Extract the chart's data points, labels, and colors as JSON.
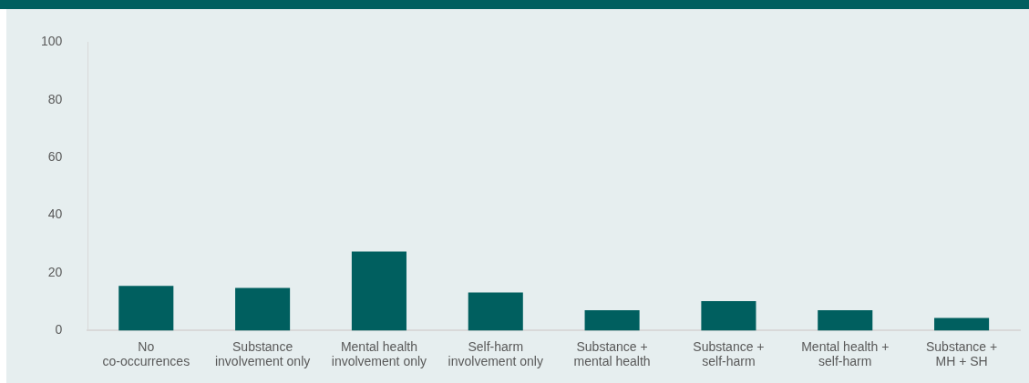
{
  "chart_data": {
    "type": "bar",
    "categories": [
      "No\nco-occurrences",
      "Substance\ninvolvement only",
      "Mental health\ninvolvement only",
      "Self-harm\ninvolvement only",
      "Substance +\nmental health",
      "Substance +\nself-harm",
      "Mental health +\nself-harm",
      "Substance +\nMH + SH"
    ],
    "values": [
      15.5,
      14.8,
      27.4,
      13.2,
      7.1,
      10.2,
      7.1,
      4.4
    ],
    "color": "#005f5f",
    "ylim": [
      0,
      100
    ],
    "yticks": [
      0,
      20,
      40,
      60,
      80,
      100
    ],
    "grid": false,
    "legend": false
  }
}
